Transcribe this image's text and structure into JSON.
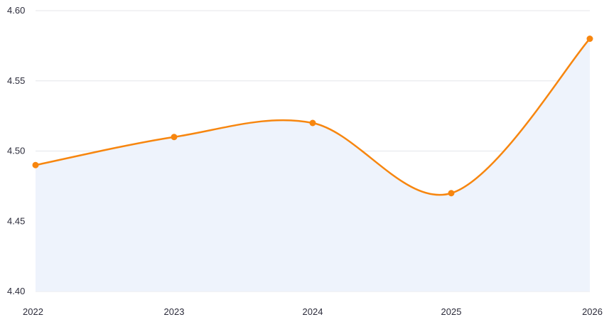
{
  "chart_data": {
    "type": "area",
    "title": "",
    "xlabel": "",
    "ylabel": "",
    "x": [
      "2022",
      "2023",
      "2024",
      "2025",
      "2026"
    ],
    "series": [
      {
        "values": [
          4.49,
          4.51,
          4.52,
          4.47,
          4.58
        ]
      }
    ],
    "ylim": [
      4.4,
      4.6
    ],
    "yticks": [
      "4.40",
      "4.45",
      "4.50",
      "4.55",
      "4.60"
    ],
    "grid": true,
    "legend": "none",
    "colors": {
      "line": "#f7860f",
      "fill": "#eef3fc",
      "marker": "#f7860f",
      "grid": "#e4e6ea",
      "text": "#2b2b3a"
    }
  }
}
